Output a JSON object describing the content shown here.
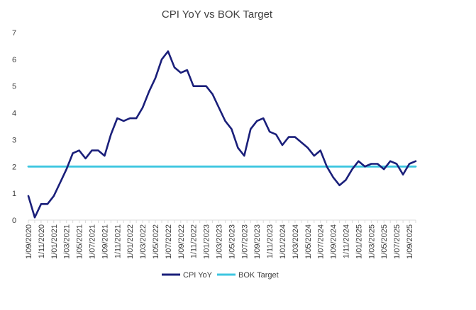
{
  "chart_data": {
    "type": "line",
    "title": "CPI YoY vs BOK Target",
    "xlabel": "",
    "ylabel": "",
    "ylim": [
      0,
      7
    ],
    "yticks": [
      "0",
      "1",
      "2",
      "3",
      "4",
      "5",
      "6",
      "7"
    ],
    "x_tick_labels": [
      "1/09/2020",
      "1/11/2020",
      "1/01/2021",
      "1/03/2021",
      "1/05/2021",
      "1/07/2021",
      "1/09/2021",
      "1/11/2021",
      "1/01/2022",
      "1/03/2022",
      "1/05/2022",
      "1/07/2022",
      "1/09/2022",
      "1/11/2022",
      "1/01/2023",
      "1/03/2023",
      "1/05/2023",
      "1/07/2023",
      "1/09/2023",
      "1/11/2023",
      "1/01/2024",
      "1/03/2024",
      "1/05/2024",
      "1/07/2024",
      "1/09/2024",
      "1/11/2024",
      "1/01/2025",
      "1/03/2025",
      "1/05/2025",
      "1/07/2025",
      "1/09/2025"
    ],
    "legend_position": "bottom",
    "series": [
      {
        "name": "CPI YoY",
        "color": "#1a1f7a",
        "values": [
          0.9,
          0.1,
          0.6,
          0.6,
          0.9,
          1.4,
          1.9,
          2.5,
          2.6,
          2.3,
          2.6,
          2.6,
          2.4,
          3.2,
          3.8,
          3.7,
          3.8,
          3.8,
          4.2,
          4.8,
          5.3,
          6.0,
          6.3,
          5.7,
          5.5,
          5.6,
          5.0,
          5.0,
          5.0,
          4.7,
          4.2,
          3.7,
          3.4,
          2.7,
          2.4,
          3.4,
          3.7,
          3.8,
          3.3,
          3.2,
          2.8,
          3.1,
          3.1,
          2.9,
          2.7,
          2.4,
          2.6,
          2.0,
          1.6,
          1.3,
          1.5,
          1.9,
          2.2,
          2.0,
          2.1,
          2.1,
          1.9,
          2.2,
          2.1,
          1.7,
          2.1,
          2.2
        ]
      },
      {
        "name": "BOK Target",
        "color": "#3ec6e0",
        "values": [
          2,
          2,
          2,
          2,
          2,
          2,
          2,
          2,
          2,
          2,
          2,
          2,
          2,
          2,
          2,
          2,
          2,
          2,
          2,
          2,
          2,
          2,
          2,
          2,
          2,
          2,
          2,
          2,
          2,
          2,
          2,
          2,
          2,
          2,
          2,
          2,
          2,
          2,
          2,
          2,
          2,
          2,
          2,
          2,
          2,
          2,
          2,
          2,
          2,
          2,
          2,
          2,
          2,
          2,
          2,
          2,
          2,
          2,
          2,
          2,
          2,
          2
        ]
      }
    ]
  }
}
